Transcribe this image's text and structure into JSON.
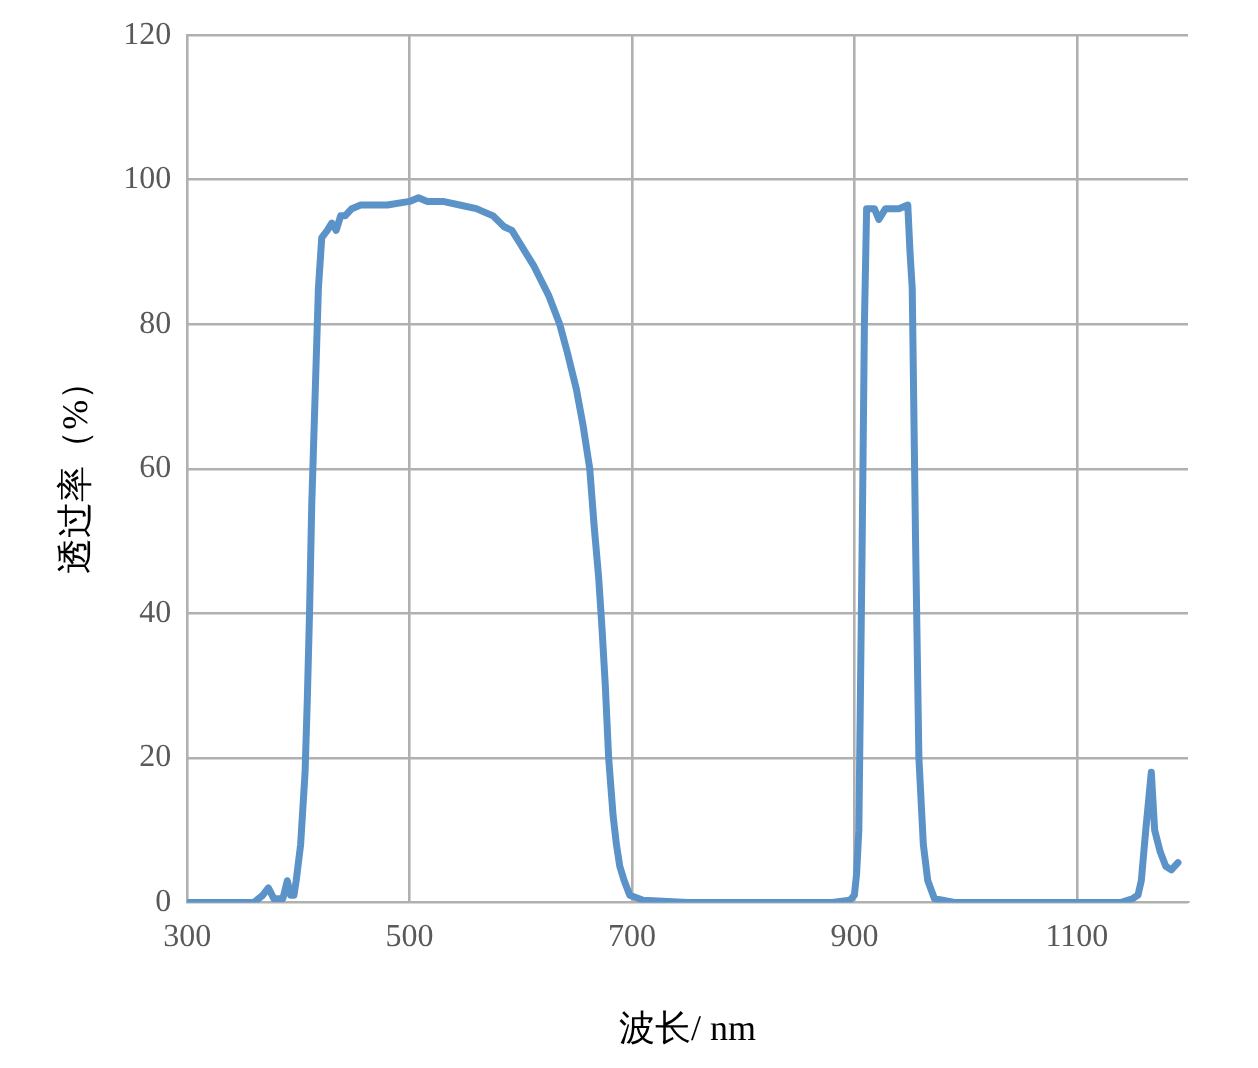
{
  "chart_data": {
    "type": "line",
    "xlabel": "波长/ nm",
    "ylabel": "透过率（%）",
    "xlim": [
      300,
      1200
    ],
    "xticks": [
      300,
      500,
      700,
      900,
      1100
    ],
    "ylim": [
      0,
      120
    ],
    "yticks": [
      0,
      20,
      40,
      60,
      80,
      100,
      120
    ],
    "grid": true,
    "legend": false,
    "marker": "none",
    "line_style": "solid",
    "series": [
      {
        "color": "#5b93c8",
        "x": [
          300,
          340,
          360,
          368,
          373,
          378,
          386,
          390,
          393,
          396,
          398,
          402,
          406,
          408,
          410,
          412,
          415,
          418,
          421,
          426,
          430,
          434,
          438,
          442,
          448,
          456,
          466,
          480,
          500,
          508,
          516,
          530,
          545,
          560,
          575,
          585,
          592,
          600,
          612,
          625,
          635,
          642,
          650,
          656,
          662,
          666,
          670,
          673,
          676,
          679,
          683,
          686,
          689,
          693,
          698,
          710,
          750,
          800,
          850,
          880,
          896,
          900,
          902,
          904,
          907,
          909,
          911,
          918,
          922,
          928,
          940,
          948,
          950,
          952,
          955,
          958,
          962,
          966,
          972,
          990,
          1050,
          1100,
          1140,
          1150,
          1155,
          1158,
          1162,
          1167,
          1170,
          1175,
          1180,
          1185,
          1191
        ],
        "values": [
          0,
          0,
          0,
          1,
          2,
          0.5,
          0.5,
          3,
          1,
          1,
          3,
          8,
          18,
          28,
          40,
          55,
          70,
          85,
          92,
          93,
          94,
          93,
          95,
          95,
          96,
          96.5,
          96.5,
          96.5,
          97,
          97.5,
          97,
          97,
          96.5,
          96,
          95,
          93.5,
          93,
          91,
          88,
          84,
          80,
          76,
          71,
          66,
          60,
          52,
          45,
          38,
          30,
          20,
          12,
          8,
          5,
          3,
          1,
          0.3,
          0,
          0,
          0,
          0,
          0.3,
          1,
          4,
          10,
          50,
          80,
          96,
          96,
          94.5,
          96,
          96,
          96.5,
          90,
          85,
          50,
          20,
          8,
          3,
          0.5,
          0,
          0,
          0,
          0,
          0.5,
          1,
          3,
          10,
          18,
          10,
          7,
          5,
          4.5,
          5.5
        ]
      }
    ]
  }
}
